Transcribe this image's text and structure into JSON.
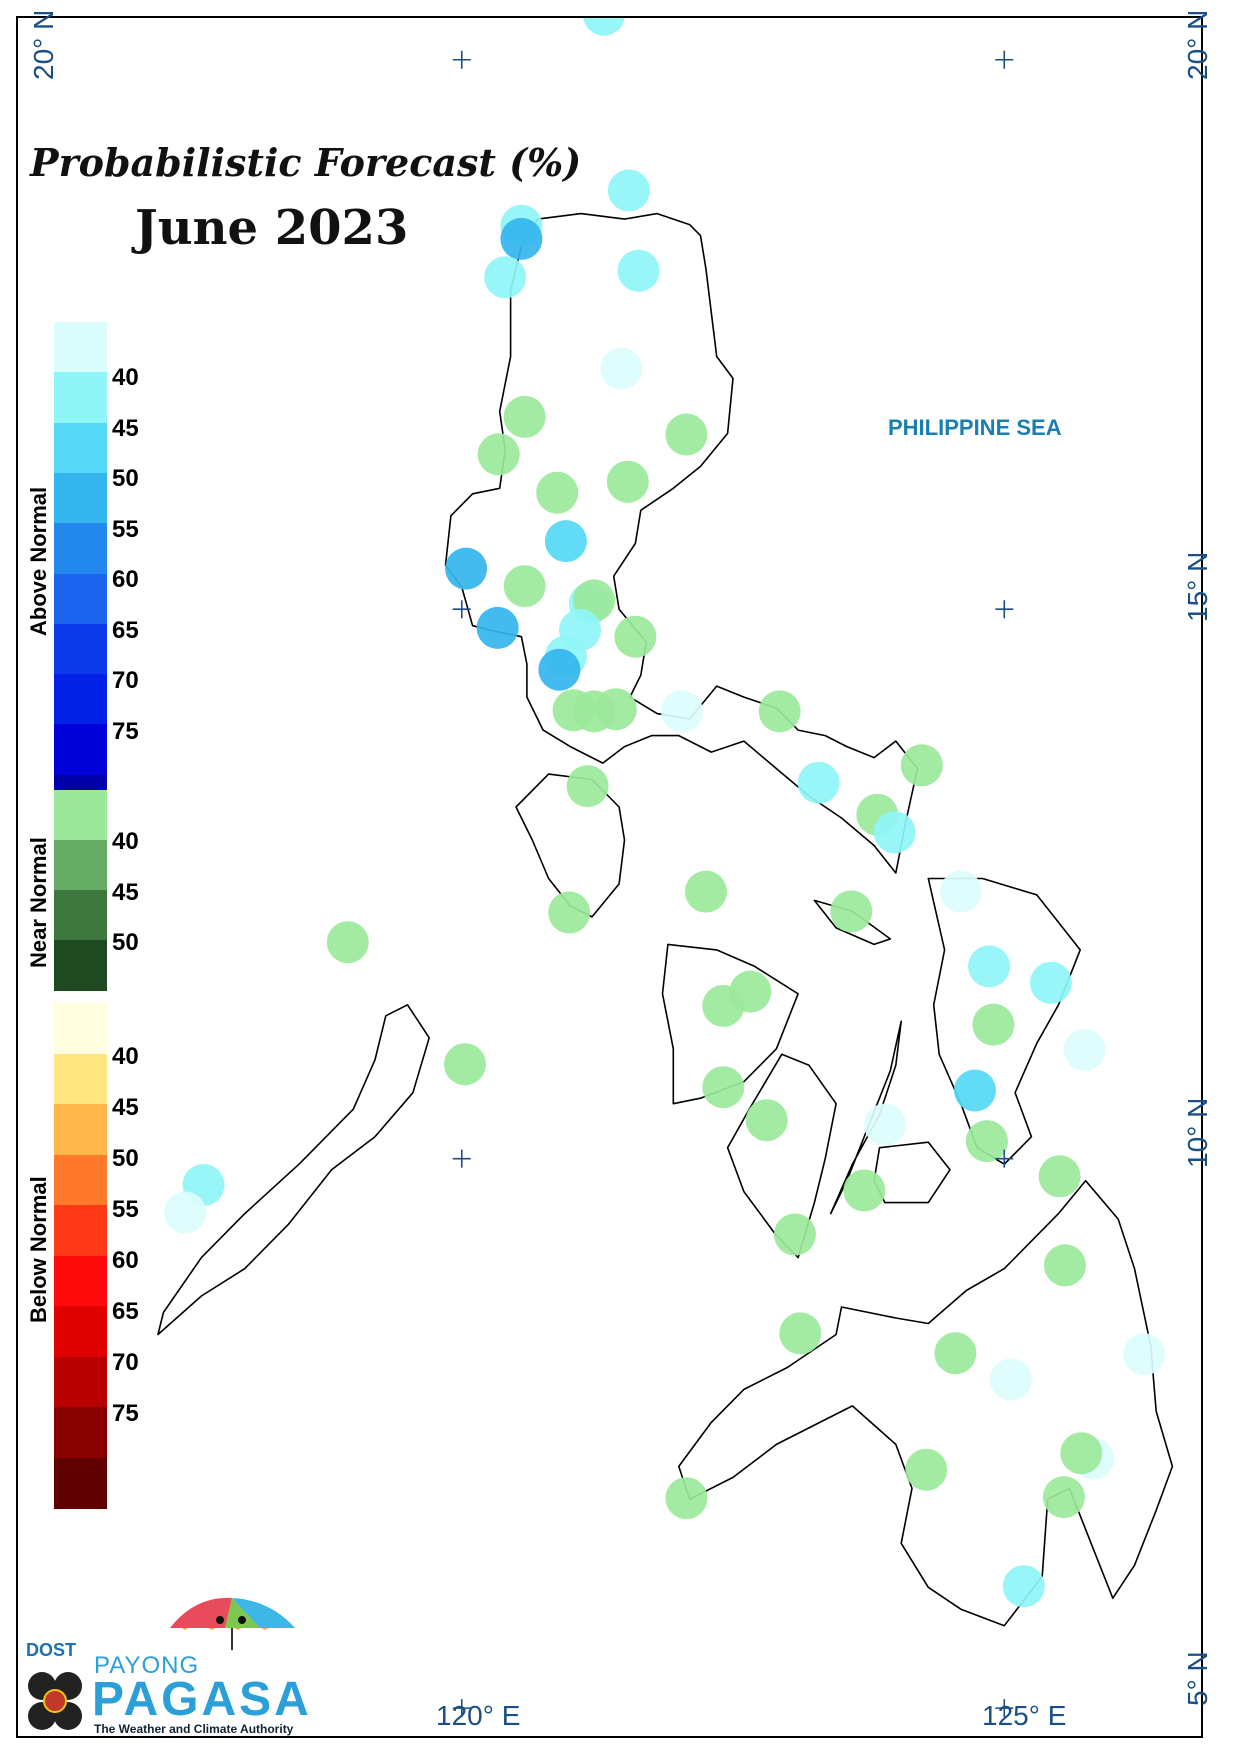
{
  "title": "Probabilistic Forecast (%)",
  "subtitle": "June 2023",
  "sea_label": "PHILIPPINE SEA",
  "coordinates": {
    "lat_20_left": "20° N",
    "lat_20_right": "20° N",
    "lat_15": "15° N",
    "lat_10": "10° N",
    "lat_5": "5° N",
    "lon_120": "120° E",
    "lon_125": "125° E"
  },
  "legend": {
    "above": {
      "label": "Above Normal",
      "colors": [
        "#dcfdfd",
        "#8ff5f7",
        "#55d8f5",
        "#34b5ee",
        "#2288ee",
        "#1a64ee",
        "#0d3aeb",
        "#0220e6",
        "#0000d8",
        "#0000a8"
      ],
      "ticks": [
        "40",
        "45",
        "50",
        "55",
        "60",
        "65",
        "70",
        "75"
      ]
    },
    "near": {
      "label": "Near Normal",
      "colors": [
        "#9be89b",
        "#66ab66",
        "#3e783e",
        "#1f4a1f"
      ],
      "ticks": [
        "40",
        "45",
        "50"
      ]
    },
    "below": {
      "label": "Below Normal",
      "colors": [
        "#fffee0",
        "#ffe680",
        "#ffb64a",
        "#ff7a2a",
        "#ff3a18",
        "#ff0a0a",
        "#e00000",
        "#b80000",
        "#880000",
        "#600000"
      ],
      "ticks": [
        "40",
        "45",
        "50",
        "55",
        "60",
        "65",
        "70",
        "75"
      ]
    }
  },
  "stations": [
    {
      "lon": 121.31,
      "lat": 20.41,
      "cat": "above",
      "level": 1
    },
    {
      "lon": 121.54,
      "lat": 18.81,
      "cat": "above",
      "level": 1
    },
    {
      "lon": 120.55,
      "lat": 18.49,
      "cat": "above",
      "level": 1
    },
    {
      "lon": 120.55,
      "lat": 18.37,
      "cat": "above",
      "level": 3
    },
    {
      "lon": 121.63,
      "lat": 18.08,
      "cat": "above",
      "level": 1
    },
    {
      "lon": 120.4,
      "lat": 18.02,
      "cat": "above",
      "level": 1
    },
    {
      "lon": 121.47,
      "lat": 17.19,
      "cat": "above",
      "level": 0
    },
    {
      "lon": 120.58,
      "lat": 16.75,
      "cat": "near",
      "level": 0
    },
    {
      "lon": 122.07,
      "lat": 16.59,
      "cat": "near",
      "level": 0
    },
    {
      "lon": 120.34,
      "lat": 16.41,
      "cat": "near",
      "level": 0
    },
    {
      "lon": 120.88,
      "lat": 16.06,
      "cat": "near",
      "level": 0
    },
    {
      "lon": 121.53,
      "lat": 16.16,
      "cat": "near",
      "level": 0
    },
    {
      "lon": 120.96,
      "lat": 15.62,
      "cat": "above",
      "level": 2
    },
    {
      "lon": 120.04,
      "lat": 15.37,
      "cat": "above",
      "level": 3
    },
    {
      "lon": 120.58,
      "lat": 15.21,
      "cat": "near",
      "level": 0
    },
    {
      "lon": 121.18,
      "lat": 15.05,
      "cat": "above",
      "level": 1
    },
    {
      "lon": 121.22,
      "lat": 15.08,
      "cat": "near",
      "level": 0
    },
    {
      "lon": 120.33,
      "lat": 14.83,
      "cat": "above",
      "level": 3
    },
    {
      "lon": 121.09,
      "lat": 14.81,
      "cat": "above",
      "level": 1
    },
    {
      "lon": 121.6,
      "lat": 14.75,
      "cat": "near",
      "level": 0
    },
    {
      "lon": 120.96,
      "lat": 14.57,
      "cat": "above",
      "level": 1
    },
    {
      "lon": 120.9,
      "lat": 14.45,
      "cat": "above",
      "level": 3
    },
    {
      "lon": 121.42,
      "lat": 14.09,
      "cat": "near",
      "level": 0
    },
    {
      "lon": 121.03,
      "lat": 14.08,
      "cat": "near",
      "level": 0
    },
    {
      "lon": 121.22,
      "lat": 14.07,
      "cat": "near",
      "level": 0
    },
    {
      "lon": 122.03,
      "lat": 14.07,
      "cat": "above",
      "level": 0
    },
    {
      "lon": 122.93,
      "lat": 14.07,
      "cat": "near",
      "level": 0
    },
    {
      "lon": 124.24,
      "lat": 13.58,
      "cat": "near",
      "level": 0
    },
    {
      "lon": 123.29,
      "lat": 13.42,
      "cat": "above",
      "level": 1
    },
    {
      "lon": 121.16,
      "lat": 13.39,
      "cat": "near",
      "level": 0
    },
    {
      "lon": 123.83,
      "lat": 13.13,
      "cat": "near",
      "level": 0
    },
    {
      "lon": 123.99,
      "lat": 12.97,
      "cat": "above",
      "level": 1
    },
    {
      "lon": 122.25,
      "lat": 12.43,
      "cat": "near",
      "level": 0
    },
    {
      "lon": 124.6,
      "lat": 12.43,
      "cat": "above",
      "level": 0
    },
    {
      "lon": 120.99,
      "lat": 12.24,
      "cat": "near",
      "level": 0
    },
    {
      "lon": 123.59,
      "lat": 12.25,
      "cat": "near",
      "level": 0
    },
    {
      "lon": 118.95,
      "lat": 11.97,
      "cat": "near",
      "level": 0
    },
    {
      "lon": 124.86,
      "lat": 11.75,
      "cat": "above",
      "level": 1
    },
    {
      "lon": 125.43,
      "lat": 11.6,
      "cat": "above",
      "level": 1
    },
    {
      "lon": 122.66,
      "lat": 11.52,
      "cat": "near",
      "level": 0
    },
    {
      "lon": 122.41,
      "lat": 11.39,
      "cat": "near",
      "level": 0
    },
    {
      "lon": 124.9,
      "lat": 11.22,
      "cat": "near",
      "level": 0
    },
    {
      "lon": 125.74,
      "lat": 10.99,
      "cat": "above",
      "level": 0
    },
    {
      "lon": 120.03,
      "lat": 10.86,
      "cat": "near",
      "level": 0
    },
    {
      "lon": 122.41,
      "lat": 10.65,
      "cat": "near",
      "level": 0
    },
    {
      "lon": 124.73,
      "lat": 10.62,
      "cat": "above",
      "level": 2
    },
    {
      "lon": 122.81,
      "lat": 10.35,
      "cat": "near",
      "level": 0
    },
    {
      "lon": 123.9,
      "lat": 10.31,
      "cat": "above",
      "level": 0
    },
    {
      "lon": 124.84,
      "lat": 10.16,
      "cat": "near",
      "level": 0
    },
    {
      "lon": 125.51,
      "lat": 9.84,
      "cat": "near",
      "level": 0
    },
    {
      "lon": 117.62,
      "lat": 9.76,
      "cat": "above",
      "level": 1
    },
    {
      "lon": 117.45,
      "lat": 9.51,
      "cat": "above",
      "level": 0
    },
    {
      "lon": 123.71,
      "lat": 9.71,
      "cat": "near",
      "level": 0
    },
    {
      "lon": 123.07,
      "lat": 9.31,
      "cat": "near",
      "level": 0
    },
    {
      "lon": 125.56,
      "lat": 9.03,
      "cat": "near",
      "level": 0
    },
    {
      "lon": 123.12,
      "lat": 8.41,
      "cat": "near",
      "level": 0
    },
    {
      "lon": 124.55,
      "lat": 8.23,
      "cat": "near",
      "level": 0
    },
    {
      "lon": 126.29,
      "lat": 8.22,
      "cat": "above",
      "level": 0
    },
    {
      "lon": 125.06,
      "lat": 7.99,
      "cat": "above",
      "level": 0
    },
    {
      "lon": 125.82,
      "lat": 7.27,
      "cat": "above",
      "level": 0
    },
    {
      "lon": 125.71,
      "lat": 7.32,
      "cat": "near",
      "level": 0
    },
    {
      "lon": 124.28,
      "lat": 7.17,
      "cat": "near",
      "level": 0
    },
    {
      "lon": 125.55,
      "lat": 6.92,
      "cat": "near",
      "level": 0
    },
    {
      "lon": 122.07,
      "lat": 6.91,
      "cat": "near",
      "level": 0
    },
    {
      "lon": 125.18,
      "lat": 6.11,
      "cat": "above",
      "level": 1
    }
  ],
  "graticule": [
    {
      "lon": 120,
      "lat": 20
    },
    {
      "lon": 125,
      "lat": 20
    },
    {
      "lon": 120,
      "lat": 15
    },
    {
      "lon": 125,
      "lat": 15
    },
    {
      "lon": 120,
      "lat": 10
    },
    {
      "lon": 125,
      "lat": 10
    },
    {
      "lon": 120,
      "lat": 5
    },
    {
      "lon": 125,
      "lat": 5
    }
  ],
  "map_extent": {
    "lon_min": 115.91,
    "lon_max": 126.85,
    "lat_min": 4.71,
    "lat_max": 20.38
  },
  "coastlines": {
    "luzon": [
      [
        121.8,
        18.6
      ],
      [
        122.1,
        18.5
      ],
      [
        122.2,
        18.4
      ],
      [
        122.25,
        18.1
      ],
      [
        122.35,
        17.3
      ],
      [
        122.5,
        17.1
      ],
      [
        122.45,
        16.6
      ],
      [
        122.2,
        16.3
      ],
      [
        121.95,
        16.1
      ],
      [
        121.65,
        15.9
      ],
      [
        121.6,
        15.6
      ],
      [
        121.4,
        15.3
      ],
      [
        121.45,
        15.0
      ],
      [
        121.7,
        14.7
      ],
      [
        121.65,
        14.4
      ],
      [
        121.55,
        14.2
      ],
      [
        121.8,
        14.05
      ],
      [
        122.1,
        14.0
      ],
      [
        122.35,
        14.3
      ],
      [
        122.6,
        14.2
      ],
      [
        122.9,
        14.1
      ],
      [
        123.1,
        13.9
      ],
      [
        123.35,
        13.85
      ],
      [
        123.55,
        13.75
      ],
      [
        123.8,
        13.65
      ],
      [
        124.0,
        13.8
      ],
      [
        124.2,
        13.55
      ],
      [
        124.1,
        13.1
      ],
      [
        124.0,
        12.6
      ],
      [
        123.8,
        12.85
      ],
      [
        123.5,
        13.1
      ],
      [
        123.2,
        13.3
      ],
      [
        122.9,
        13.55
      ],
      [
        122.6,
        13.8
      ],
      [
        122.3,
        13.7
      ],
      [
        122.0,
        13.85
      ],
      [
        121.75,
        13.85
      ],
      [
        121.5,
        13.75
      ],
      [
        121.3,
        13.6
      ],
      [
        121.0,
        13.75
      ],
      [
        120.75,
        13.9
      ],
      [
        120.6,
        14.2
      ],
      [
        120.6,
        14.5
      ],
      [
        120.55,
        14.75
      ],
      [
        120.3,
        14.8
      ],
      [
        120.1,
        14.85
      ],
      [
        120.0,
        15.2
      ],
      [
        119.85,
        15.4
      ],
      [
        119.9,
        15.85
      ],
      [
        120.1,
        16.05
      ],
      [
        120.35,
        16.1
      ],
      [
        120.4,
        16.45
      ],
      [
        120.35,
        16.8
      ],
      [
        120.45,
        17.3
      ],
      [
        120.45,
        17.9
      ],
      [
        120.55,
        18.3
      ],
      [
        120.7,
        18.55
      ],
      [
        121.1,
        18.6
      ],
      [
        121.5,
        18.55
      ],
      [
        121.8,
        18.6
      ]
    ],
    "mindoro": [
      [
        120.8,
        13.5
      ],
      [
        121.2,
        13.45
      ],
      [
        121.45,
        13.2
      ],
      [
        121.5,
        12.9
      ],
      [
        121.45,
        12.5
      ],
      [
        121.2,
        12.2
      ],
      [
        121.0,
        12.3
      ],
      [
        120.8,
        12.55
      ],
      [
        120.65,
        12.9
      ],
      [
        120.5,
        13.2
      ],
      [
        120.8,
        13.5
      ]
    ],
    "palawan": [
      [
        119.5,
        11.4
      ],
      [
        119.7,
        11.1
      ],
      [
        119.55,
        10.6
      ],
      [
        119.2,
        10.2
      ],
      [
        118.8,
        9.9
      ],
      [
        118.4,
        9.4
      ],
      [
        118.0,
        9.0
      ],
      [
        117.6,
        8.75
      ],
      [
        117.2,
        8.4
      ],
      [
        117.25,
        8.6
      ],
      [
        117.6,
        9.1
      ],
      [
        118.0,
        9.5
      ],
      [
        118.5,
        9.95
      ],
      [
        119.0,
        10.45
      ],
      [
        119.2,
        10.9
      ],
      [
        119.3,
        11.3
      ],
      [
        119.5,
        11.4
      ]
    ],
    "panay": [
      [
        121.9,
        11.95
      ],
      [
        122.35,
        11.9
      ],
      [
        122.7,
        11.75
      ],
      [
        123.1,
        11.5
      ],
      [
        122.9,
        11.0
      ],
      [
        122.6,
        10.7
      ],
      [
        122.2,
        10.55
      ],
      [
        121.95,
        10.5
      ],
      [
        121.95,
        11.0
      ],
      [
        121.85,
        11.5
      ],
      [
        121.9,
        11.95
      ]
    ],
    "negros": [
      [
        122.95,
        10.95
      ],
      [
        123.2,
        10.85
      ],
      [
        123.45,
        10.5
      ],
      [
        123.35,
        10.0
      ],
      [
        123.25,
        9.6
      ],
      [
        123.1,
        9.1
      ],
      [
        122.9,
        9.3
      ],
      [
        122.6,
        9.7
      ],
      [
        122.45,
        10.1
      ],
      [
        122.65,
        10.45
      ],
      [
        122.95,
        10.95
      ]
    ],
    "cebu": [
      [
        124.05,
        11.25
      ],
      [
        124.0,
        10.85
      ],
      [
        123.85,
        10.4
      ],
      [
        123.6,
        9.95
      ],
      [
        123.4,
        9.5
      ],
      [
        123.55,
        9.8
      ],
      [
        123.75,
        10.3
      ],
      [
        123.95,
        10.8
      ],
      [
        124.05,
        11.25
      ]
    ],
    "bohol": [
      [
        123.85,
        10.1
      ],
      [
        124.3,
        10.15
      ],
      [
        124.5,
        9.9
      ],
      [
        124.3,
        9.6
      ],
      [
        123.9,
        9.6
      ],
      [
        123.8,
        9.8
      ],
      [
        123.85,
        10.1
      ]
    ],
    "samar_leyte": [
      [
        124.3,
        12.55
      ],
      [
        124.8,
        12.55
      ],
      [
        125.3,
        12.4
      ],
      [
        125.7,
        11.9
      ],
      [
        125.5,
        11.4
      ],
      [
        125.3,
        11.05
      ],
      [
        125.1,
        10.6
      ],
      [
        125.25,
        10.2
      ],
      [
        125.0,
        9.95
      ],
      [
        124.75,
        10.1
      ],
      [
        124.6,
        10.5
      ],
      [
        124.4,
        10.95
      ],
      [
        124.35,
        11.4
      ],
      [
        124.45,
        11.9
      ],
      [
        124.3,
        12.55
      ]
    ],
    "masbate": [
      [
        123.25,
        12.35
      ],
      [
        123.6,
        12.25
      ],
      [
        123.95,
        12.0
      ],
      [
        123.8,
        11.95
      ],
      [
        123.45,
        12.1
      ],
      [
        123.25,
        12.35
      ]
    ],
    "mindanao": [
      [
        123.5,
        8.65
      ],
      [
        124.0,
        8.55
      ],
      [
        124.3,
        8.5
      ],
      [
        124.65,
        8.8
      ],
      [
        125.0,
        9.0
      ],
      [
        125.5,
        9.5
      ],
      [
        125.75,
        9.8
      ],
      [
        126.05,
        9.45
      ],
      [
        126.2,
        9.0
      ],
      [
        126.35,
        8.3
      ],
      [
        126.4,
        7.7
      ],
      [
        126.55,
        7.2
      ],
      [
        126.4,
        6.8
      ],
      [
        126.2,
        6.3
      ],
      [
        126.0,
        6.0
      ],
      [
        125.8,
        6.5
      ],
      [
        125.6,
        7.0
      ],
      [
        125.4,
        6.9
      ],
      [
        125.35,
        6.2
      ],
      [
        125.0,
        5.75
      ],
      [
        124.6,
        5.9
      ],
      [
        124.3,
        6.1
      ],
      [
        124.05,
        6.5
      ],
      [
        124.15,
        7.0
      ],
      [
        124.0,
        7.4
      ],
      [
        123.6,
        7.75
      ],
      [
        123.3,
        7.6
      ],
      [
        122.9,
        7.4
      ],
      [
        122.5,
        7.1
      ],
      [
        122.1,
        6.9
      ],
      [
        122.0,
        7.2
      ],
      [
        122.3,
        7.6
      ],
      [
        122.6,
        7.9
      ],
      [
        123.0,
        8.1
      ],
      [
        123.45,
        8.4
      ],
      [
        123.5,
        8.65
      ]
    ]
  }
}
